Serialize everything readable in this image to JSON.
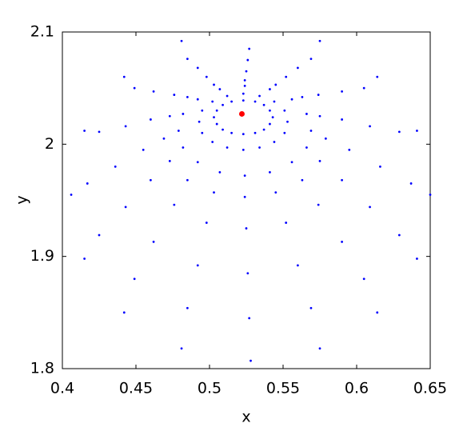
{
  "chart_data": {
    "type": "scatter",
    "xlabel": "x",
    "ylabel": "y",
    "xlim": [
      0.4,
      0.65
    ],
    "ylim": [
      1.8,
      2.1
    ],
    "xticks": [
      0.4,
      0.45,
      0.5,
      0.55,
      0.6,
      0.65
    ],
    "yticks": [
      1.8,
      1.9,
      2,
      2.1
    ],
    "series": [
      {
        "color": "#0000ff",
        "size": 1.4,
        "x": [
          0.65,
          0.641,
          0.614,
          0.575,
          0.481,
          0.442,
          0.415,
          0.406,
          0.415,
          0.442,
          0.481,
          0.528,
          0.575,
          0.614,
          0.641,
          0.637,
          0.629,
          0.605,
          0.569,
          0.527,
          0.485,
          0.449,
          0.425,
          0.417,
          0.425,
          0.449,
          0.485,
          0.527,
          0.569,
          0.605,
          0.629,
          0.616,
          0.609,
          0.59,
          0.56,
          0.526,
          0.492,
          0.462,
          0.443,
          0.436,
          0.443,
          0.462,
          0.492,
          0.526,
          0.56,
          0.59,
          0.609,
          0.595,
          0.59,
          0.574,
          0.552,
          0.525,
          0.498,
          0.476,
          0.46,
          0.455,
          0.46,
          0.476,
          0.498,
          0.525,
          0.552,
          0.574,
          0.59,
          0.579,
          0.575,
          0.563,
          0.545,
          0.524,
          0.503,
          0.485,
          0.473,
          0.469,
          0.473,
          0.485,
          0.503,
          0.524,
          0.545,
          0.563,
          0.575,
          0.569,
          0.566,
          0.556,
          0.541,
          0.524,
          0.507,
          0.492,
          0.482,
          0.479,
          0.482,
          0.492,
          0.507,
          0.524,
          0.541,
          0.556,
          0.566,
          0.553,
          0.551,
          0.544,
          0.534,
          0.523,
          0.512,
          0.502,
          0.495,
          0.493,
          0.495,
          0.502,
          0.512,
          0.523,
          0.534,
          0.544,
          0.551,
          0.543,
          0.541,
          0.537,
          0.531,
          0.523,
          0.515,
          0.509,
          0.505,
          0.503,
          0.505,
          0.509,
          0.515,
          0.523,
          0.531,
          0.537,
          0.541
        ],
        "y": [
          1.955,
          2.012,
          2.06,
          2.092,
          2.092,
          2.06,
          2.012,
          1.955,
          1.898,
          1.85,
          1.818,
          1.807,
          1.818,
          1.85,
          1.898,
          1.965,
          2.011,
          2.05,
          2.076,
          2.085,
          2.076,
          2.05,
          2.011,
          1.965,
          1.919,
          1.88,
          1.854,
          1.845,
          1.854,
          1.88,
          1.919,
          1.98,
          2.016,
          2.047,
          2.068,
          2.075,
          2.068,
          2.047,
          2.016,
          1.98,
          1.944,
          1.913,
          1.892,
          1.885,
          1.892,
          1.913,
          1.944,
          1.995,
          2.022,
          2.044,
          2.06,
          2.065,
          2.06,
          2.044,
          2.022,
          1.995,
          1.968,
          1.946,
          1.93,
          1.925,
          1.93,
          1.946,
          1.968,
          2.005,
          2.025,
          2.042,
          2.053,
          2.057,
          2.053,
          2.042,
          2.025,
          2.005,
          1.985,
          1.968,
          1.957,
          1.953,
          1.957,
          1.968,
          1.985,
          2.012,
          2.027,
          2.04,
          2.049,
          2.052,
          2.049,
          2.04,
          2.027,
          2.012,
          1.997,
          1.984,
          1.975,
          1.972,
          1.975,
          1.984,
          1.997,
          2.02,
          2.03,
          2.038,
          2.043,
          2.045,
          2.043,
          2.038,
          2.03,
          2.02,
          2.01,
          2.002,
          1.997,
          1.995,
          1.997,
          2.002,
          2.01,
          2.024,
          2.03,
          2.035,
          2.038,
          2.039,
          2.038,
          2.035,
          2.03,
          2.024,
          2.018,
          2.013,
          2.01,
          2.009,
          2.01,
          2.013,
          2.018
        ]
      },
      {
        "color": "#ff0000",
        "size": 3.5,
        "x": [
          0.522
        ],
        "y": [
          2.027
        ]
      }
    ]
  }
}
